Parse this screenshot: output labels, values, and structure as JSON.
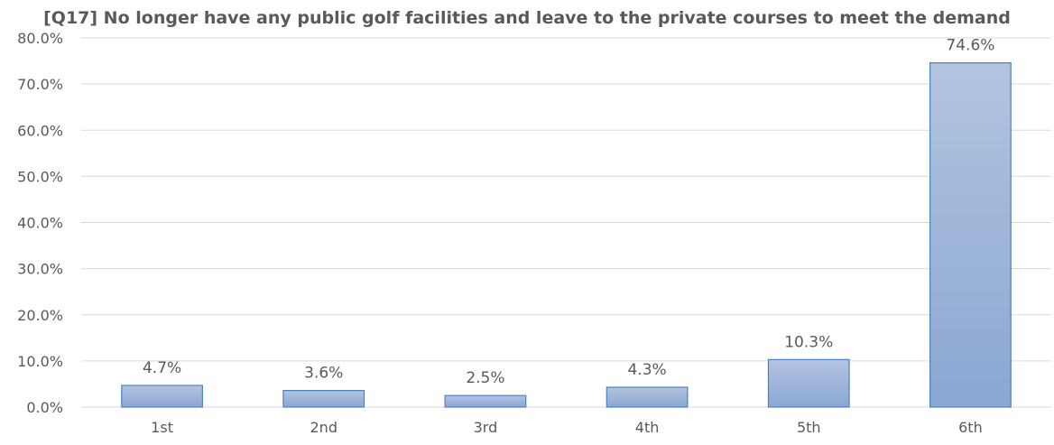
{
  "chart_data": {
    "type": "bar",
    "title": "[Q17] No longer have any public golf facilities and leave to the private courses to meet the demand",
    "categories": [
      "1st",
      "2nd",
      "3rd",
      "4th",
      "5th",
      "6th"
    ],
    "values": [
      4.7,
      3.6,
      2.5,
      4.3,
      10.3,
      74.6
    ],
    "data_labels": [
      "4.7%",
      "3.6%",
      "2.5%",
      "4.3%",
      "10.3%",
      "74.6%"
    ],
    "y_ticks": [
      0,
      10,
      20,
      30,
      40,
      50,
      60,
      70,
      80
    ],
    "y_tick_labels": [
      "0.0%",
      "10.0%",
      "20.0%",
      "30.0%",
      "40.0%",
      "50.0%",
      "60.0%",
      "70.0%",
      "80.0%"
    ],
    "xlabel": "",
    "ylabel": "",
    "ylim": [
      0,
      80
    ],
    "grid": true,
    "legend": "none",
    "colors": {
      "bar_top": "#b3c4e0",
      "bar_bottom": "#8aa7d2",
      "bar_border": "#4f81bd",
      "gridline": "#d9d9d9",
      "text": "#595959"
    }
  }
}
